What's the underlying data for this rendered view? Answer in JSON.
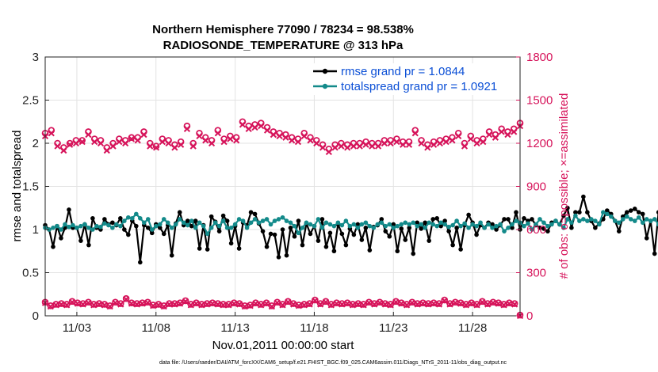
{
  "chart_data": {
    "type": "line",
    "title": "Northern Hemisphere 77090 / 78234 = 98.538%",
    "subtitle": "RADIOSONDE_TEMPERATURE @ 313 hPa",
    "xlabel": "Nov.01,2011 00:00:00 start",
    "ylabel": "rmse and totalspread",
    "y2label": "# of obs: o=possible; ×=assimilated",
    "xlim": [
      0,
      30
    ],
    "ylim": [
      0,
      3
    ],
    "y2lim": [
      0,
      1800
    ],
    "x_ticks": [
      {
        "day": 2,
        "label": "11/03"
      },
      {
        "day": 7,
        "label": "11/08"
      },
      {
        "day": 12,
        "label": "11/13"
      },
      {
        "day": 17,
        "label": "11/18"
      },
      {
        "day": 22,
        "label": "11/23"
      },
      {
        "day": 27,
        "label": "11/28"
      }
    ],
    "y_ticks": [
      "0",
      "0.5",
      "1",
      "1.5",
      "2",
      "2.5",
      "3"
    ],
    "y2_ticks": [
      "0",
      "300",
      "600",
      "900",
      "1200",
      "1500",
      "1800"
    ],
    "x_step_days": 0.25,
    "series": [
      {
        "name": "rmse",
        "legend": "rmse grand pr = 1.0844",
        "color": "#000000",
        "values": [
          1.05,
          1.0,
          0.8,
          1.04,
          0.9,
          1.02,
          1.23,
          1.02,
          1.02,
          0.87,
          1.06,
          0.82,
          1.13,
          1.02,
          1.0,
          1.12,
          1.06,
          1.08,
          1.05,
          1.13,
          1.0,
          0.94,
          1.1,
          1.04,
          0.62,
          1.05,
          1.02,
          0.96,
          1.06,
          1.02,
          0.95,
          1.05,
          0.7,
          1.07,
          1.2,
          1.05,
          1.1,
          1.04,
          1.1,
          0.78,
          1.05,
          0.77,
          1.15,
          1.09,
          0.98,
          1.16,
          1.1,
          0.84,
          1.04,
          0.78,
          1.08,
          1.05,
          1.2,
          1.18,
          1.07,
          0.98,
          0.8,
          0.95,
          0.94,
          0.68,
          1.0,
          0.7,
          1.02,
          0.92,
          1.1,
          0.82,
          1.07,
          0.95,
          1.04,
          0.87,
          1.12,
          0.8,
          0.96,
          0.75,
          1.06,
          0.95,
          0.82,
          1.01,
          0.94,
          1.06,
          0.88,
          1.02,
          0.76,
          1.03,
          1.05,
          1.12,
          0.98,
          0.92,
          1.06,
          0.75,
          1.01,
          0.88,
          1.02,
          0.72,
          1.08,
          1.01,
          1.08,
          0.87,
          1.12,
          1.13,
          1.04,
          1.1,
          0.98,
          0.82,
          1.02,
          0.77,
          1.05,
          1.17,
          1.08,
          0.94,
          1.05,
          1.02,
          1.08,
          1.06,
          1.0,
          1.05,
          1.12,
          1.12,
          1.02,
          1.2,
          1.0,
          1.13,
          1.1,
          1.12,
          1.05,
          1.02,
          1.01,
          0.98,
          1.08,
          1.1,
          1.06,
          1.16,
          1.25,
          1.02,
          1.2,
          1.2,
          1.38,
          1.2,
          1.1,
          1.02,
          1.07,
          1.12,
          1.22,
          1.18,
          1.1,
          0.98,
          1.15,
          1.2,
          1.22,
          1.24,
          1.2,
          1.18,
          0.9,
          1.1,
          0.72,
          1.2,
          0.94,
          1.16,
          0.72,
          1.2,
          1.15,
          1.18,
          1.16,
          1.2,
          1.2,
          1.18,
          1.18
        ]
      },
      {
        "name": "totalspread",
        "legend": "totalspread grand pr = 1.0921",
        "color": "#138a8a",
        "values": [
          1.02,
          1.0,
          1.02,
          1.04,
          1.0,
          1.06,
          1.03,
          1.05,
          1.02,
          1.04,
          1.06,
          1.02,
          1.0,
          1.04,
          1.03,
          1.07,
          1.05,
          1.02,
          1.06,
          1.04,
          1.1,
          1.14,
          1.13,
          1.18,
          1.13,
          1.08,
          1.12,
          1.0,
          1.04,
          1.06,
          1.12,
          1.08,
          1.02,
          1.06,
          1.12,
          1.08,
          1.05,
          1.1,
          1.02,
          1.08,
          1.04,
          0.95,
          1.02,
          1.08,
          1.04,
          1.1,
          1.02,
          1.02,
          1.06,
          1.12,
          1.1,
          1.02,
          1.08,
          1.12,
          1.08,
          1.1,
          1.12,
          1.06,
          1.1,
          1.12,
          1.14,
          1.1,
          1.08,
          1.04,
          0.96,
          1.02,
          1.08,
          1.06,
          1.04,
          1.12,
          1.02,
          1.08,
          1.06,
          1.04,
          1.08,
          1.05,
          1.1,
          1.04,
          1.06,
          1.02,
          1.06,
          1.08,
          1.04,
          1.02,
          1.06,
          1.08,
          1.04,
          1.06,
          1.02,
          1.04,
          1.06,
          1.08,
          1.06,
          1.08,
          1.04,
          1.06,
          1.02,
          1.08,
          1.06,
          1.04,
          1.08,
          1.06,
          1.03,
          1.05,
          1.1,
          1.04,
          1.07,
          1.02,
          1.06,
          1.04,
          1.08,
          1.02,
          1.06,
          1.02,
          1.04,
          1.06,
          0.98,
          1.02,
          1.06,
          1.1,
          1.08,
          1.04,
          1.07,
          1.0,
          1.06,
          1.12,
          1.08,
          1.04,
          1.06,
          1.1,
          1.06,
          1.02,
          1.12,
          1.08,
          1.16,
          1.1,
          1.12,
          1.1,
          1.12,
          1.1,
          1.06,
          1.2,
          1.18,
          1.15,
          1.1,
          1.08,
          1.12,
          1.15,
          1.12,
          1.1,
          1.14,
          1.08,
          1.12,
          1.1,
          1.12,
          1.06,
          1.1,
          1.08,
          1.12,
          1.05,
          1.1,
          1.14,
          1.12,
          1.1,
          1.14,
          1.12,
          1.14
        ]
      },
      {
        "name": "obs_possible_upper",
        "axis": "right",
        "marker": "o",
        "color": "#d6135a",
        "values": [
          1270,
          1290,
          1200,
          1170,
          1200,
          1220,
          1220,
          1280,
          1230,
          1220,
          1170,
          1200,
          1230,
          1220,
          1240,
          1240,
          1280,
          1200,
          1180,
          1230,
          1220,
          1190,
          1210,
          1320,
          1200,
          1270,
          1240,
          1220,
          1290,
          1230,
          1250,
          1240,
          1350,
          1320,
          1330,
          1340,
          1310,
          1280,
          1270,
          1260,
          1240,
          1230,
          1270,
          1240,
          1220,
          1190,
          1160,
          1190,
          1200,
          1190,
          1200,
          1200,
          1210,
          1200,
          1200,
          1220,
          1220,
          1230,
          1210,
          1210,
          1290,
          1220,
          1190,
          1210,
          1220,
          1230,
          1240,
          1270,
          1200,
          1250,
          1220,
          1230,
          1280,
          1260,
          1300,
          1280,
          1300,
          1340
        ]
      },
      {
        "name": "obs_assimilated_upper",
        "axis": "right",
        "marker": "x",
        "color": "#d6135a",
        "values": [
          1250,
          1270,
          1180,
          1150,
          1190,
          1200,
          1210,
          1260,
          1210,
          1200,
          1150,
          1180,
          1210,
          1200,
          1230,
          1220,
          1260,
          1180,
          1170,
          1210,
          1200,
          1170,
          1190,
          1300,
          1180,
          1250,
          1220,
          1200,
          1270,
          1210,
          1230,
          1220,
          1330,
          1300,
          1310,
          1320,
          1290,
          1260,
          1250,
          1240,
          1220,
          1210,
          1250,
          1220,
          1200,
          1170,
          1140,
          1170,
          1180,
          1170,
          1180,
          1180,
          1190,
          1180,
          1180,
          1200,
          1200,
          1210,
          1190,
          1190,
          1270,
          1200,
          1170,
          1190,
          1200,
          1210,
          1220,
          1250,
          1180,
          1230,
          1200,
          1210,
          1260,
          1240,
          1280,
          1260,
          1280,
          1320
        ]
      },
      {
        "name": "obs_possible_lower",
        "axis": "right",
        "marker": "o",
        "color": "#d6135a",
        "values": [
          95,
          70,
          80,
          85,
          80,
          100,
          90,
          85,
          95,
          80,
          85,
          80,
          70,
          95,
          85,
          120,
          90,
          85,
          90,
          95,
          75,
          80,
          70,
          85,
          85,
          90,
          105,
          80,
          90,
          80,
          85,
          90,
          85,
          80,
          80,
          90,
          85,
          70,
          75,
          90,
          80,
          90,
          70,
          95,
          80,
          100,
          85,
          75,
          80,
          85,
          110,
          85,
          100,
          80,
          90,
          85,
          90,
          80,
          85,
          80,
          95,
          85,
          95,
          85,
          80,
          100,
          90,
          80,
          95,
          85,
          90,
          85,
          90,
          85,
          110,
          85,
          95,
          90,
          80,
          90,
          80,
          100,
          85,
          95,
          90,
          80,
          90,
          85,
          5
        ]
      },
      {
        "name": "obs_assimilated_lower",
        "axis": "right",
        "marker": "x",
        "color": "#d6135a",
        "values": [
          90,
          65,
          75,
          80,
          75,
          95,
          85,
          80,
          90,
          75,
          80,
          75,
          65,
          90,
          80,
          115,
          85,
          80,
          85,
          90,
          70,
          75,
          65,
          80,
          80,
          85,
          100,
          75,
          85,
          75,
          80,
          85,
          80,
          75,
          75,
          85,
          80,
          65,
          70,
          85,
          75,
          85,
          65,
          90,
          75,
          95,
          80,
          70,
          75,
          80,
          105,
          80,
          95,
          75,
          85,
          80,
          85,
          75,
          80,
          75,
          90,
          80,
          90,
          80,
          75,
          95,
          85,
          75,
          90,
          80,
          85,
          80,
          85,
          80,
          105,
          80,
          90,
          85,
          75,
          85,
          75,
          95,
          80,
          90,
          85,
          75,
          85,
          80,
          0
        ]
      }
    ]
  },
  "footer": "data file: /Users/raeder/DAI/ATM_forcXX/CAM6_setup/f.e21.FHIST_BGC.f09_025.CAM6assim.011/Diags_NTrS_2011-11/obs_diag_output.nc"
}
